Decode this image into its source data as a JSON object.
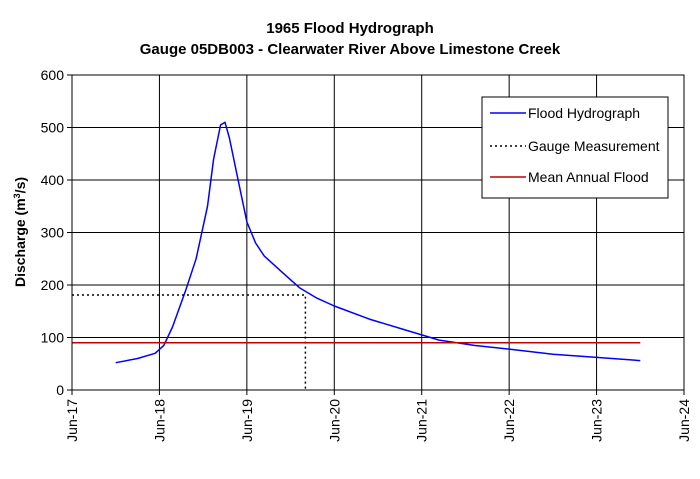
{
  "chart_data": {
    "type": "line",
    "title": "1965 Flood Hydrograph",
    "subtitle": "Gauge 05DB003 - Clearwater River Above Limestone Creek",
    "ylabel": "Discharge (m",
    "ylabel_superscript": "3",
    "ylabel_suffix": "/s)",
    "xlabel": "",
    "xlim": [
      17,
      24
    ],
    "ylim": [
      0,
      600
    ],
    "x_ticks": [
      {
        "value": 17,
        "label": "Jun-17"
      },
      {
        "value": 18,
        "label": "Jun-18"
      },
      {
        "value": 19,
        "label": "Jun-19"
      },
      {
        "value": 20,
        "label": "Jun-20"
      },
      {
        "value": 21,
        "label": "Jun-21"
      },
      {
        "value": 22,
        "label": "Jun-22"
      },
      {
        "value": 23,
        "label": "Jun-23"
      },
      {
        "value": 24,
        "label": "Jun-24"
      }
    ],
    "y_ticks": [
      0,
      100,
      200,
      300,
      400,
      500,
      600
    ],
    "grid": true,
    "legend_position": "top-right",
    "series": [
      {
        "name": "Flood Hydrograph",
        "color": "#0000ff",
        "style": "solid",
        "x": [
          17.5,
          17.75,
          17.95,
          18.05,
          18.15,
          18.3,
          18.42,
          18.55,
          18.62,
          18.7,
          18.75,
          18.8,
          18.9,
          19.0,
          19.1,
          19.2,
          19.4,
          19.6,
          19.8,
          20.0,
          20.4,
          20.8,
          21.2,
          21.6,
          22.0,
          22.5,
          23.0,
          23.5
        ],
        "y": [
          52,
          60,
          70,
          85,
          120,
          190,
          250,
          350,
          440,
          505,
          510,
          480,
          400,
          320,
          280,
          255,
          225,
          195,
          175,
          160,
          135,
          115,
          95,
          85,
          78,
          68,
          62,
          56
        ]
      },
      {
        "name": "Gauge Measurement",
        "color": "#000000",
        "style": "dotted",
        "x": [
          17.0,
          19.67,
          19.67
        ],
        "y": [
          181,
          181,
          0
        ]
      },
      {
        "name": "Mean Annual Flood",
        "color": "#c00000",
        "style": "solid",
        "x": [
          17.0,
          23.5
        ],
        "y": [
          90,
          90
        ]
      }
    ]
  }
}
